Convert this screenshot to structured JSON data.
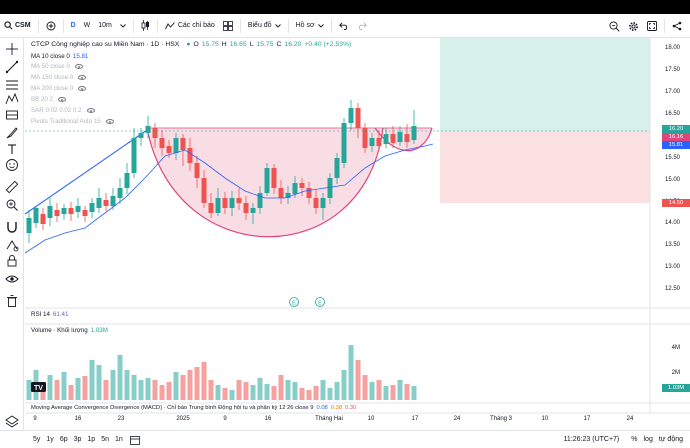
{
  "toolbar": {
    "symbol": "CSM",
    "interval_w": "W",
    "interval_10m": "10m",
    "indicators_label": "Các chỉ báo",
    "chart_type_label": "Biểu đồ",
    "profile_label": "Hồ sơ"
  },
  "legend": {
    "title": "CTCP Công nghiệp cao su Miền Nam · 1D · HSX",
    "ohlc_o_label": "O",
    "ohlc_o": "15.75",
    "ohlc_h_label": "H",
    "ohlc_h": "16.65",
    "ohlc_l_label": "L",
    "ohlc_l": "15.75",
    "ohlc_c_label": "C",
    "ohlc_c": "16.20",
    "change": "+0.40 (+2.53%)",
    "ma10": "MA 10 close 0",
    "ma10_val": "15.81",
    "ma50": "MA 50 close 0",
    "ma150": "MA 150 close 0",
    "ma200": "MA 200 close 0",
    "bb": "BB 20 2",
    "sar": "SAR 0.02 0.02 0.2",
    "pivots": "Pivots Traditional Auto 15"
  },
  "price_axis": {
    "ticks": [
      "18.00",
      "17.50",
      "17.00",
      "16.50",
      "16.00",
      "15.50",
      "15.00",
      "14.50",
      "14.00",
      "13.50",
      "13.00",
      "12.50"
    ],
    "tag_current": "16.20",
    "tag_current2": "16.16",
    "tag_ma": "15.81",
    "tag_stop": "14.50"
  },
  "rsi": {
    "label": "RSI 14",
    "value": "61.41"
  },
  "volume": {
    "label": "Volume · Khối lượng",
    "value": "1.03M",
    "ticks": [
      "4M",
      "2M"
    ],
    "tag": "1.03M"
  },
  "macd": {
    "label": "Moving Average Convergence Divergence (MACD) · Chỉ báo Trung bình Động hội tụ và phân kỳ 12 26 close 9",
    "v1": "0.08",
    "v2": "0.38",
    "v3": "0.30"
  },
  "time_axis": [
    "9",
    "16",
    "23",
    "2025",
    "9",
    "16",
    "Tháng Hai",
    "10",
    "17",
    "24",
    "Tháng 3",
    "10",
    "17",
    "24"
  ],
  "bottom": {
    "ranges": [
      "5y",
      "1y",
      "6p",
      "3p",
      "1p",
      "5n",
      "1n"
    ],
    "clock": "11:26:23 (UTC+7)",
    "pct": "%",
    "log": "log",
    "auto": "tự động"
  },
  "markers": [
    "E",
    "E"
  ],
  "logo": "TV",
  "colors": {
    "up": "#26a69a",
    "down": "#ef5350",
    "ma10": "#2962ff",
    "cup_fill": "#f8d7e0",
    "cup_line": "#e0457b",
    "target_fill": "#d7f0ea",
    "stop_fill": "#fbe0e2"
  }
}
